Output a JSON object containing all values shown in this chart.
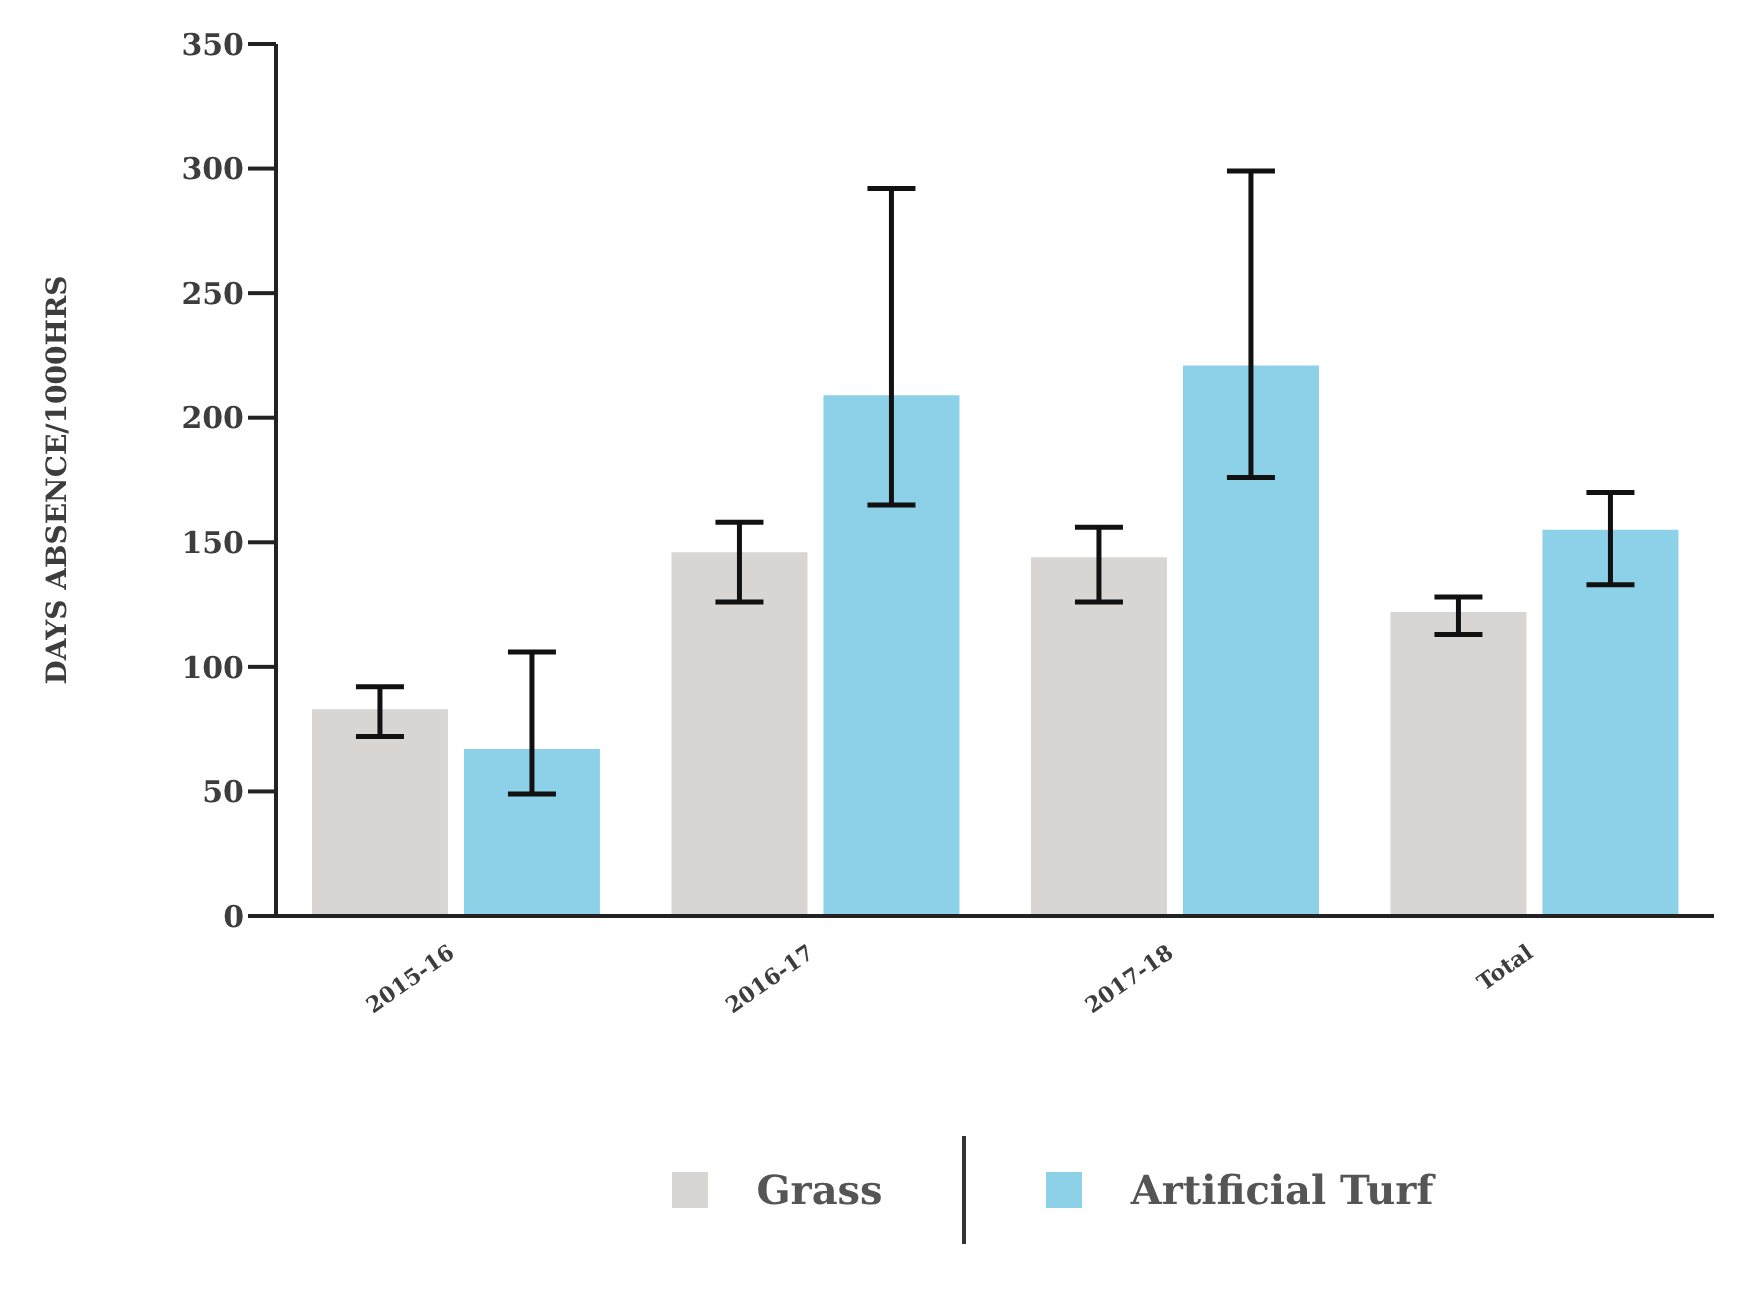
{
  "chart_data": {
    "type": "bar",
    "ylabel": "DAYS ABSENCE/1000HRS",
    "categories": [
      "2015-16",
      "2016-17",
      "2017-18",
      "Total"
    ],
    "series": [
      {
        "name": "Grass",
        "color": "#d9d5d2",
        "values": [
          83,
          146,
          144,
          122
        ],
        "errors": [
          [
            72,
            92
          ],
          [
            126,
            158
          ],
          [
            126,
            156
          ],
          [
            113,
            128
          ]
        ]
      },
      {
        "name": "Artificial Turf",
        "color": "#8dd1e8",
        "values": [
          67,
          209,
          221,
          155
        ],
        "errors": [
          [
            49,
            106
          ],
          [
            165,
            292
          ],
          [
            176,
            299
          ],
          [
            133,
            170
          ]
        ]
      }
    ],
    "ylim": [
      0,
      350
    ],
    "yticks": [
      0,
      50,
      100,
      150,
      200,
      250,
      300,
      350
    ],
    "grid": false,
    "legend": "bottom"
  }
}
